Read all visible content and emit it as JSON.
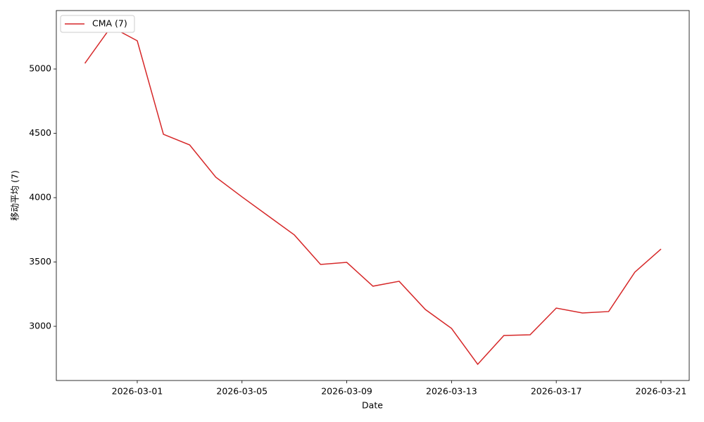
{
  "chart_data": {
    "type": "line",
    "x_label": "Date",
    "y_label": "移动平均 (7)",
    "x": [
      "2026-02-27",
      "2026-02-28",
      "2026-03-01",
      "2026-03-02",
      "2026-03-03",
      "2026-03-04",
      "2026-03-05",
      "2026-03-06",
      "2026-03-07",
      "2026-03-08",
      "2026-03-09",
      "2026-03-10",
      "2026-03-11",
      "2026-03-12",
      "2026-03-13",
      "2026-03-14",
      "2026-03-15",
      "2026-03-16",
      "2026-03-17",
      "2026-03-18",
      "2026-03-19",
      "2026-03-20",
      "2026-03-21"
    ],
    "series": [
      {
        "name": "CMA (7)",
        "color": "#d62728",
        "values": [
          5044,
          5328,
          5219,
          4492,
          4410,
          4159,
          4006,
          3858,
          3710,
          3481,
          3497,
          3312,
          3350,
          3131,
          2984,
          2705,
          2929,
          2934,
          3142,
          3104,
          3115,
          3421,
          3601
        ]
      }
    ],
    "xlim": [
      "2026-02-25T21:50:00",
      "2026-03-22T01:50:00"
    ],
    "xticks": [
      "2026-03-01",
      "2026-03-05",
      "2026-03-09",
      "2026-03-13",
      "2026-03-17",
      "2026-03-21"
    ],
    "ylim": [
      2579,
      5454
    ],
    "yticks": [
      3000,
      3500,
      4000,
      4500,
      5000
    ],
    "legend": "upper left",
    "grid": false
  }
}
